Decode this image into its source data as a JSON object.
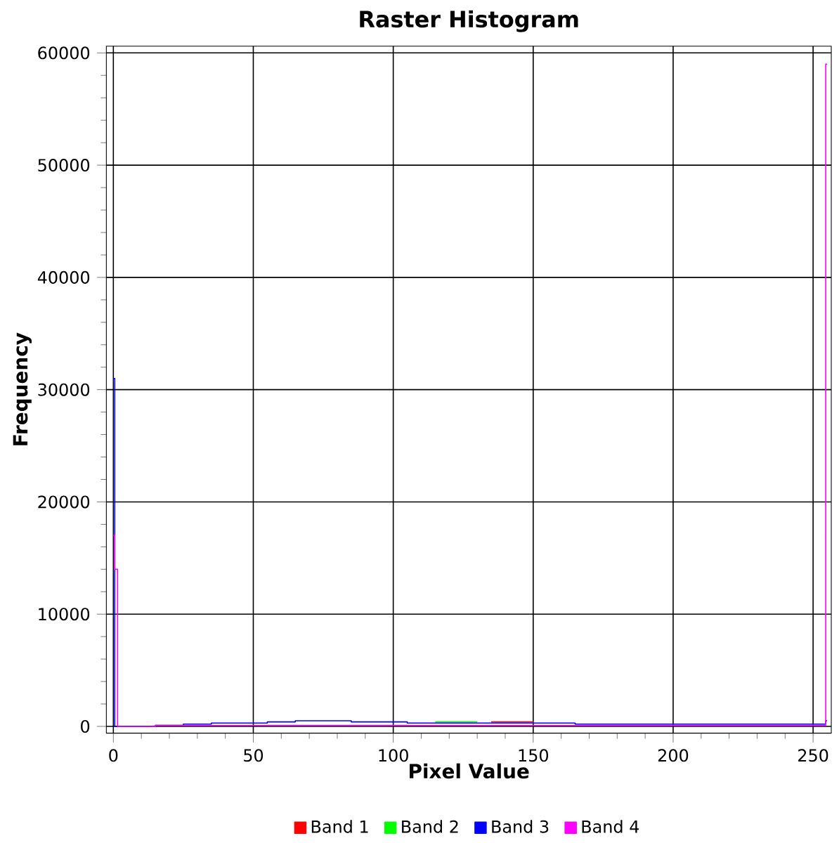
{
  "chart_data": {
    "type": "step",
    "title": "Raster Histogram",
    "xlabel": "Pixel Value",
    "ylabel": "Frequency",
    "xlim": [
      -2.5,
      256.5
    ],
    "ylim": [
      -600,
      60600
    ],
    "xticks": [
      0,
      {
        "value": 10,
        "label": null
      },
      {
        "value": 20,
        "label": null
      },
      {
        "value": 30,
        "label": null
      },
      {
        "value": 40,
        "label": null
      },
      50,
      {
        "value": 60,
        "label": null
      },
      {
        "value": 70,
        "label": null
      },
      {
        "value": 80,
        "label": null
      },
      {
        "value": 90,
        "label": null
      },
      100,
      {
        "value": 110,
        "label": null
      },
      {
        "value": 120,
        "label": null
      },
      {
        "value": 130,
        "label": null
      },
      {
        "value": 140,
        "label": null
      },
      150,
      {
        "value": 160,
        "label": null
      },
      {
        "value": 170,
        "label": null
      },
      {
        "value": 180,
        "label": null
      },
      {
        "value": 190,
        "label": null
      },
      200,
      {
        "value": 210,
        "label": null
      },
      {
        "value": 220,
        "label": null
      },
      {
        "value": 230,
        "label": null
      },
      {
        "value": 240,
        "label": null
      },
      250
    ],
    "yticks": [
      0,
      {
        "value": 2000,
        "label": null
      },
      {
        "value": 4000,
        "label": null
      },
      {
        "value": 6000,
        "label": null
      },
      {
        "value": 8000,
        "label": null
      },
      10000,
      {
        "value": 12000,
        "label": null
      },
      {
        "value": 14000,
        "label": null
      },
      {
        "value": 16000,
        "label": null
      },
      {
        "value": 18000,
        "label": null
      },
      20000,
      {
        "value": 22000,
        "label": null
      },
      {
        "value": 24000,
        "label": null
      },
      {
        "value": 26000,
        "label": null
      },
      {
        "value": 28000,
        "label": null
      },
      30000,
      {
        "value": 32000,
        "label": null
      },
      {
        "value": 34000,
        "label": null
      },
      {
        "value": 36000,
        "label": null
      },
      {
        "value": 38000,
        "label": null
      },
      40000,
      {
        "value": 42000,
        "label": null
      },
      {
        "value": 44000,
        "label": null
      },
      {
        "value": 46000,
        "label": null
      },
      {
        "value": 48000,
        "label": null
      },
      50000,
      {
        "value": 52000,
        "label": null
      },
      {
        "value": 54000,
        "label": null
      },
      {
        "value": 56000,
        "label": null
      },
      {
        "value": 58000,
        "label": null
      },
      60000
    ],
    "grid": true,
    "legend": "bottom",
    "series": [
      {
        "name": "Band 1",
        "color": "#ff0000",
        "x": [
          135,
          140,
          145,
          150
        ],
        "values": [
          400,
          400,
          400,
          400
        ]
      },
      {
        "name": "Band 2",
        "color": "#00ff00",
        "x": [
          115,
          120,
          125,
          130
        ],
        "values": [
          400,
          400,
          400,
          400
        ]
      },
      {
        "name": "Band 3",
        "color": "#0000ff",
        "x": [
          0,
          1,
          10,
          20,
          30,
          40,
          50,
          60,
          70,
          80,
          90,
          100,
          110,
          120,
          130,
          140,
          150,
          160,
          170,
          180,
          190,
          200,
          210,
          220,
          230,
          240,
          250,
          254,
          255
        ],
        "values": [
          31000,
          0,
          0,
          100,
          200,
          300,
          300,
          400,
          500,
          500,
          400,
          400,
          300,
          300,
          300,
          300,
          300,
          300,
          200,
          200,
          200,
          200,
          200,
          200,
          200,
          200,
          200,
          200,
          500
        ]
      },
      {
        "name": "Band 4",
        "color": "#ff00ff",
        "x": [
          0,
          1,
          2,
          10,
          20,
          30,
          40,
          50,
          60,
          70,
          80,
          90,
          100,
          110,
          120,
          130,
          140,
          150,
          160,
          170,
          180,
          190,
          200,
          210,
          220,
          230,
          240,
          250,
          254,
          255
        ],
        "values": [
          17000,
          14000,
          0,
          0,
          100,
          100,
          100,
          100,
          100,
          100,
          100,
          100,
          100,
          100,
          100,
          100,
          100,
          100,
          100,
          100,
          100,
          100,
          100,
          100,
          100,
          100,
          100,
          100,
          100,
          59000
        ]
      }
    ]
  }
}
